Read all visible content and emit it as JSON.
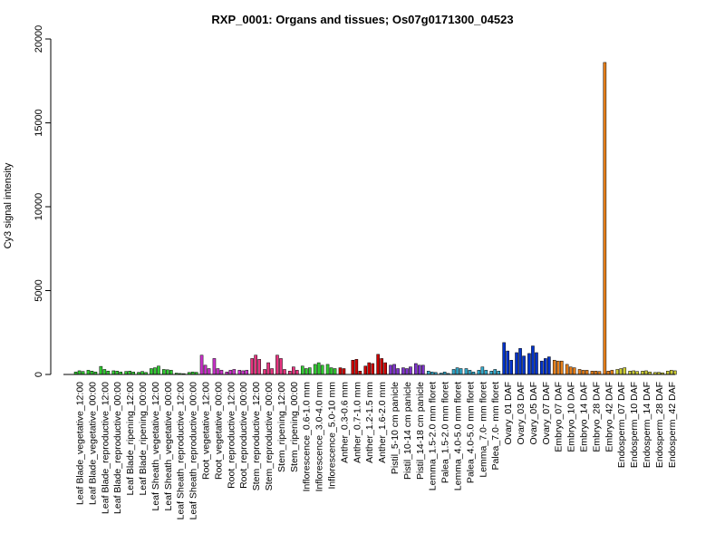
{
  "chart_data": {
    "type": "bar",
    "title": "RXP_0001: Organs and tissues; Os07g0171300_04523",
    "xlabel": "",
    "ylabel": "Cy3 signal intensity",
    "ylim": [
      0,
      20000
    ],
    "yticks": [
      0,
      5000,
      10000,
      15000,
      20000
    ],
    "grid": false,
    "legend": "none",
    "labeled_categories": [
      "Leaf Blade_vegetative_12:00",
      "Leaf Blade_vegetative_00:00",
      "Leaf Blade_reproductive_12:00",
      "Leaf Blade_reproductive_00:00",
      "Leaf Blade_ripening_12:00",
      "Leaf Blade_ripening_00:00",
      "Leaf Sheath_vegetative_12:00",
      "Leaf Sheath_vegetative_00:00",
      "Leaf Sheath_reproductive_12:00",
      "Leaf Sheath_reproductive_00:00",
      "Root_vegetative_12:00",
      "Root_vegetative_00:00",
      "Root_reproductive_12:00",
      "Root_reproductive_00:00",
      "Stem_reproductive_12:00",
      "Stem_reproductive_00:00",
      "Stem_ripening_12:00",
      "Stem_ripening_00:00",
      "Inflorescence_0.6-1.0 mm",
      "Inflorescence_3.0-4.0 mm",
      "Inflorescence_5.0-10 mm",
      "Anther_0.3-0.6 mm",
      "Anther_0.7-1.0 mm",
      "Anther_1.2-1.5 mm",
      "Anther_1.6-2.0 mm",
      "Pistil_5-10 cm panicle",
      "Pistil_10-14 cm panicle",
      "Pistil_14-18 cm panicle",
      "Lemma_1.5-2.0 mm floret",
      "Palea_1.5-2.0 mm floret",
      "Lemma_4.0-5.0 mm floret",
      "Palea_4.0-5.0 mm floret",
      "Lemma_7.0- mm floret",
      "Palea_7.0- mm floret",
      "Ovary_01 DAF",
      "Ovary_03 DAF",
      "Ovary_05 DAF",
      "Ovary_07 DAF",
      "Embryo_07 DAF",
      "Embryo_10 DAF",
      "Embryo_14 DAF",
      "Embryo_28 DAF",
      "Embryo_42 DAF",
      "Endosperm_07 DAF",
      "Endosperm_10 DAF",
      "Endosperm_14 DAF",
      "Endosperm_28 DAF",
      "Endosperm_42 DAF"
    ],
    "groups": [
      {
        "color": "#33cc33",
        "values": [
          150,
          220,
          180
        ]
      },
      {
        "color": "#33cc33",
        "values": [
          250,
          200,
          150
        ]
      },
      {
        "color": "#33cc33",
        "values": [
          480,
          300,
          200
        ]
      },
      {
        "color": "#33cc33",
        "values": [
          220,
          200,
          150
        ]
      },
      {
        "color": "#33cc33",
        "values": [
          180,
          200,
          150
        ]
      },
      {
        "color": "#33cc33",
        "values": [
          130,
          180,
          120
        ]
      },
      {
        "color": "#33cc33",
        "values": [
          350,
          400,
          500
        ]
      },
      {
        "color": "#33cc33",
        "values": [
          300,
          280,
          250
        ]
      },
      {
        "color": "#33cc33",
        "values": [
          80,
          60,
          50
        ]
      },
      {
        "color": "#33cc33",
        "values": [
          120,
          150,
          130
        ]
      },
      {
        "color": "#cc33cc",
        "values": [
          1150,
          550,
          350
        ]
      },
      {
        "color": "#cc33cc",
        "values": [
          950,
          350,
          250
        ]
      },
      {
        "color": "#cc33cc",
        "values": [
          150,
          250,
          300
        ]
      },
      {
        "color": "#cc33cc",
        "values": [
          250,
          220,
          250
        ]
      },
      {
        "color": "#e6337f",
        "values": [
          950,
          1150,
          900
        ]
      },
      {
        "color": "#e6337f",
        "values": [
          300,
          700,
          350
        ]
      },
      {
        "color": "#e6337f",
        "values": [
          1150,
          950,
          300
        ]
      },
      {
        "color": "#e6337f",
        "values": [
          200,
          450,
          250
        ]
      },
      {
        "color": "#33cc33",
        "values": [
          500,
          350,
          400
        ]
      },
      {
        "color": "#33cc33",
        "values": [
          600,
          700,
          550
        ]
      },
      {
        "color": "#33cc33",
        "values": [
          600,
          400,
          350
        ]
      },
      {
        "color": "#cc0000",
        "values": [
          400,
          350,
          0
        ]
      },
      {
        "color": "#cc0000",
        "values": [
          850,
          900,
          200
        ]
      },
      {
        "color": "#cc0000",
        "values": [
          500,
          700,
          650
        ]
      },
      {
        "color": "#cc0000",
        "values": [
          1200,
          950,
          700
        ]
      },
      {
        "color": "#7f33cc",
        "values": [
          550,
          600,
          350
        ]
      },
      {
        "color": "#7f33cc",
        "values": [
          400,
          350,
          450
        ]
      },
      {
        "color": "#7f33cc",
        "values": [
          650,
          550,
          550
        ]
      },
      {
        "color": "#33aacc",
        "values": [
          200,
          150,
          120
        ]
      },
      {
        "color": "#33aacc",
        "values": [
          80,
          150,
          60
        ]
      },
      {
        "color": "#33aacc",
        "values": [
          300,
          400,
          350
        ]
      },
      {
        "color": "#33aacc",
        "values": [
          350,
          250,
          150
        ]
      },
      {
        "color": "#33aacc",
        "values": [
          250,
          450,
          250
        ]
      },
      {
        "color": "#33aacc",
        "values": [
          200,
          300,
          200
        ]
      },
      {
        "color": "#0033cc",
        "values": [
          1900,
          1400,
          850
        ]
      },
      {
        "color": "#0033cc",
        "values": [
          1300,
          1550,
          1100
        ]
      },
      {
        "color": "#0033cc",
        "values": [
          1250,
          1700,
          1300
        ]
      },
      {
        "color": "#0033cc",
        "values": [
          800,
          950,
          1050
        ]
      },
      {
        "color": "#e67f1a",
        "values": [
          850,
          800,
          800
        ]
      },
      {
        "color": "#e67f1a",
        "values": [
          600,
          450,
          400
        ]
      },
      {
        "color": "#e67f1a",
        "values": [
          300,
          250,
          250
        ]
      },
      {
        "color": "#e67f1a",
        "values": [
          200,
          200,
          180
        ]
      },
      {
        "color": "#e67f1a",
        "values": [
          18600,
          200,
          250
        ]
      },
      {
        "color": "#cccc33",
        "values": [
          300,
          350,
          400
        ]
      },
      {
        "color": "#cccc33",
        "values": [
          200,
          220,
          180
        ]
      },
      {
        "color": "#cccc33",
        "values": [
          200,
          220,
          150
        ]
      },
      {
        "color": "#cccc33",
        "values": [
          120,
          130,
          100
        ]
      },
      {
        "color": "#cccc33",
        "values": [
          200,
          250,
          220
        ]
      }
    ]
  }
}
